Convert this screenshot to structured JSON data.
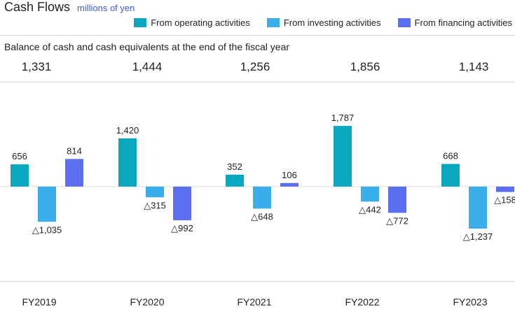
{
  "header": {
    "title": "Cash Flows",
    "unit": "millions of yen"
  },
  "legend": [
    {
      "label": "From operating activities",
      "color": "#0aa8bf"
    },
    {
      "label": "From investing activities",
      "color": "#3aaeea"
    },
    {
      "label": "From financing activities",
      "color": "#5b6ff0"
    }
  ],
  "balance": {
    "label": "Balance of cash and cash equivalents at the end of the fiscal year",
    "values": [
      "1,331",
      "1,444",
      "1,256",
      "1,856",
      "1,143"
    ]
  },
  "chart_data": {
    "type": "bar",
    "categories": [
      "FY2019",
      "FY2020",
      "FY2021",
      "FY2022",
      "FY2023"
    ],
    "series": [
      {
        "name": "From operating activities",
        "color": "#0aa8bf",
        "values": [
          656,
          1420,
          352,
          1787,
          668
        ],
        "labels": [
          "656",
          "1,420",
          "352",
          "1,787",
          "668"
        ]
      },
      {
        "name": "From investing activities",
        "color": "#3aaeea",
        "values": [
          -1035,
          -315,
          -648,
          -442,
          -1237
        ],
        "labels": [
          "△1,035",
          "△315",
          "△648",
          "△442",
          "△1,237"
        ]
      },
      {
        "name": "From financing activities",
        "color": "#5b6ff0",
        "values": [
          814,
          -992,
          106,
          -772,
          -158
        ],
        "labels": [
          "814",
          "△992",
          "106",
          "△772",
          "△158"
        ]
      }
    ],
    "title": "Cash Flows",
    "ylabel": "millions of yen",
    "grid": false,
    "legend_position": "top-right"
  }
}
